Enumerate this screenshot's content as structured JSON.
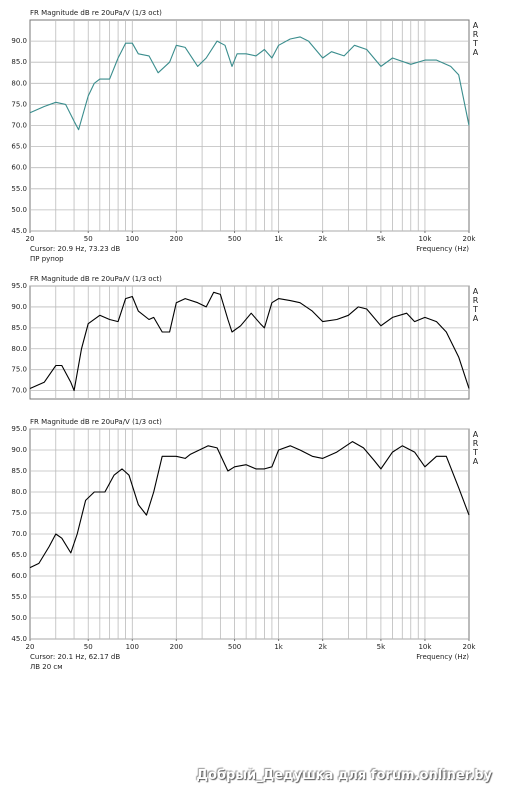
{
  "chart_data": [
    {
      "type": "line",
      "title": "FR Magnitude dB re 20uPa/V (1/3 oct)",
      "log_x": true,
      "grid": true,
      "xlim": [
        20,
        20000
      ],
      "ylim": [
        45,
        95
      ],
      "yticks": [
        {
          "value": 45,
          "label": "45.0"
        },
        {
          "value": 50,
          "label": "50.0"
        },
        {
          "value": 55,
          "label": "55.0"
        },
        {
          "value": 60,
          "label": "60.0"
        },
        {
          "value": 65,
          "label": "65.0"
        },
        {
          "value": 70,
          "label": "70.0"
        },
        {
          "value": 75,
          "label": "75.0"
        },
        {
          "value": 80,
          "label": "80.0"
        },
        {
          "value": 85,
          "label": "85.0"
        },
        {
          "value": 90,
          "label": "90.0"
        }
      ],
      "xticks": [
        20,
        50,
        100,
        200,
        500,
        {
          "value": 1000,
          "label": "1k"
        },
        {
          "value": 2000,
          "label": "2k"
        },
        {
          "value": 5000,
          "label": "5k"
        },
        {
          "value": 10000,
          "label": "10k"
        },
        {
          "value": 20000,
          "label": "20k"
        }
      ],
      "xgrid": [
        30,
        40,
        50,
        60,
        70,
        80,
        90,
        100,
        200,
        300,
        400,
        500,
        600,
        700,
        800,
        900,
        1000,
        2000,
        3000,
        4000,
        5000,
        6000,
        7000,
        8000,
        9000,
        10000
      ],
      "x_label": "Frequency (Hz)",
      "cursor": "Cursor: 20.9 Hz, 73.23 dB",
      "label": "ПР рупор",
      "logo": "ARTA",
      "x": [
        20,
        25,
        30,
        35,
        40,
        43,
        50,
        55,
        60,
        70,
        80,
        90,
        100,
        110,
        130,
        150,
        180,
        200,
        230,
        280,
        320,
        380,
        430,
        480,
        520,
        600,
        700,
        800,
        900,
        1000,
        1200,
        1400,
        1600,
        2000,
        2300,
        2800,
        3300,
        4000,
        5000,
        6000,
        8000,
        10000,
        12000,
        15000,
        17000,
        20000
      ],
      "series": [
        {
          "color": "#3a8d8d",
          "values": [
            73,
            74.5,
            75.5,
            75,
            71,
            69,
            77,
            80,
            81,
            81,
            86,
            89.5,
            89.5,
            87,
            86.5,
            82.5,
            85,
            89,
            88.5,
            84,
            86,
            90,
            89,
            84,
            87,
            87,
            86.5,
            88,
            86,
            89,
            90.5,
            91,
            90,
            86,
            87.5,
            86.5,
            89,
            88,
            84,
            86,
            84.5,
            85.5,
            85.5,
            84,
            82,
            70
          ]
        }
      ]
    },
    {
      "type": "line",
      "title": "FR Magnitude dB re 20uPa/V (1/3 oct)",
      "log_x": true,
      "grid": true,
      "xlim": [
        20,
        20000
      ],
      "ylim": [
        68,
        95
      ],
      "yticks": [
        {
          "value": 70,
          "label": "70.0"
        },
        {
          "value": 75,
          "label": "75.0"
        },
        {
          "value": 80,
          "label": "80.0"
        },
        {
          "value": 85,
          "label": "85.0"
        },
        {
          "value": 90,
          "label": "90.0"
        },
        {
          "value": 95,
          "label": "95.0"
        }
      ],
      "xgrid": [
        30,
        40,
        50,
        60,
        70,
        80,
        90,
        100,
        200,
        300,
        400,
        500,
        600,
        700,
        800,
        900,
        1000,
        2000,
        3000,
        4000,
        5000,
        6000,
        7000,
        8000,
        9000,
        10000
      ],
      "logo": "ARTA",
      "x": [
        20,
        25,
        30,
        33,
        38,
        40,
        45,
        50,
        60,
        70,
        80,
        90,
        100,
        110,
        130,
        140,
        160,
        180,
        200,
        230,
        280,
        320,
        360,
        400,
        450,
        480,
        550,
        650,
        750,
        800,
        900,
        1000,
        1200,
        1400,
        1700,
        2000,
        2500,
        3000,
        3500,
        4000,
        5000,
        6000,
        7500,
        8500,
        10000,
        12000,
        14000,
        17000,
        20000
      ],
      "series": [
        {
          "color": "#000000",
          "values": [
            70.5,
            72,
            76,
            76,
            72,
            70,
            80,
            86,
            88,
            87,
            86.5,
            92,
            92.5,
            89,
            87,
            87.5,
            84,
            84,
            91,
            92,
            91,
            90,
            93.5,
            93,
            87,
            84,
            85.5,
            88.5,
            86,
            85,
            91,
            92,
            91.5,
            91,
            89,
            86.5,
            87,
            88,
            90,
            89.5,
            85.5,
            87.5,
            88.5,
            86.5,
            87.5,
            86.5,
            84,
            78,
            70.5
          ]
        }
      ]
    },
    {
      "type": "line",
      "title": "FR Magnitude dB re 20uPa/V (1/3 oct)",
      "log_x": true,
      "grid": true,
      "xlim": [
        20,
        20000
      ],
      "ylim": [
        45,
        95
      ],
      "yticks": [
        {
          "value": 45,
          "label": "45.0"
        },
        {
          "value": 50,
          "label": "50.0"
        },
        {
          "value": 55,
          "label": "55.0"
        },
        {
          "value": 60,
          "label": "60.0"
        },
        {
          "value": 65,
          "label": "65.0"
        },
        {
          "value": 70,
          "label": "70.0"
        },
        {
          "value": 75,
          "label": "75.0"
        },
        {
          "value": 80,
          "label": "80.0"
        },
        {
          "value": 85,
          "label": "85.0"
        },
        {
          "value": 90,
          "label": "90.0"
        },
        {
          "value": 95,
          "label": "95.0"
        }
      ],
      "xticks": [
        20,
        50,
        100,
        200,
        500,
        {
          "value": 1000,
          "label": "1k"
        },
        {
          "value": 2000,
          "label": "2k"
        },
        {
          "value": 5000,
          "label": "5k"
        },
        {
          "value": 10000,
          "label": "10k"
        },
        {
          "value": 20000,
          "label": "20k"
        }
      ],
      "xgrid": [
        30,
        40,
        50,
        60,
        70,
        80,
        90,
        100,
        200,
        300,
        400,
        500,
        600,
        700,
        800,
        900,
        1000,
        2000,
        3000,
        4000,
        5000,
        6000,
        7000,
        8000,
        9000,
        10000
      ],
      "x_label": "Frequency (Hz)",
      "cursor": "Cursor: 20.1 Hz, 62.17 dB",
      "label": "ЛВ 20 см",
      "logo": "ARTA",
      "x": [
        20,
        23,
        27,
        30,
        33,
        38,
        42,
        48,
        55,
        65,
        75,
        85,
        95,
        110,
        125,
        140,
        160,
        200,
        230,
        250,
        330,
        380,
        450,
        500,
        600,
        700,
        800,
        900,
        1000,
        1200,
        1400,
        1700,
        2000,
        2500,
        3200,
        3800,
        4500,
        5000,
        6000,
        7000,
        8500,
        10000,
        12000,
        14000,
        17000,
        20000
      ],
      "series": [
        {
          "color": "#000000",
          "values": [
            62,
            63,
            67,
            70,
            69,
            65.5,
            70,
            78,
            80,
            80,
            84,
            85.5,
            84,
            77,
            74.5,
            80,
            88.5,
            88.5,
            88,
            89,
            91,
            90.5,
            85,
            86,
            86.5,
            85.5,
            85.5,
            86,
            90,
            91,
            90,
            88.5,
            88,
            89.5,
            92,
            90.5,
            87.5,
            85.5,
            89.5,
            91,
            89.5,
            86,
            88.5,
            88.5,
            81,
            74.5
          ]
        }
      ]
    }
  ],
  "watermark": "Добрый_Дедушка для forum.onliner.by"
}
